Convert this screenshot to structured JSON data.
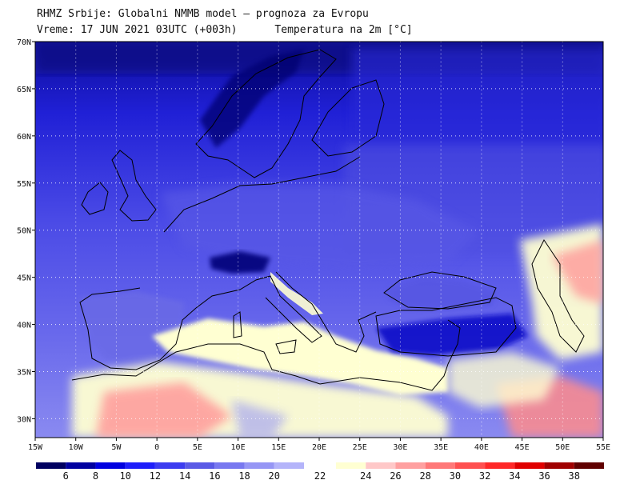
{
  "header": {
    "line1": "RHMZ Srbije: Globalni NMMB model — prognoza za Evropu",
    "line2": "Vreme: 17 JUN 2021 03UTC (+003h)      Temperatura na 2m [°C]"
  },
  "map": {
    "lon_range": [
      -15,
      55
    ],
    "lat_range": [
      28,
      70
    ],
    "lat_ticks": [
      "30N",
      "35N",
      "40N",
      "45N",
      "50N",
      "55N",
      "60N",
      "65N",
      "70N"
    ],
    "lon_ticks": [
      "15W",
      "10W",
      "5W",
      "0",
      "5E",
      "10E",
      "15E",
      "20E",
      "25E",
      "30E",
      "35E",
      "40E",
      "45E",
      "50E",
      "55E"
    ],
    "gridlines": true
  },
  "colorbar": {
    "labels": [
      "6",
      "8",
      "10",
      "12",
      "14",
      "16",
      "18",
      "20",
      "22",
      "24",
      "26",
      "28",
      "30",
      "32",
      "34",
      "36",
      "38"
    ],
    "colors": [
      "#000060",
      "#0000a0",
      "#0000e0",
      "#1e1efa",
      "#3c3cf0",
      "#5a5ae6",
      "#7878f0",
      "#9696f5",
      "#b4b4fa",
      "#ffffd2",
      "#ffc8c8",
      "#ffa0a0",
      "#ff7878",
      "#ff5050",
      "#ff2828",
      "#e00000",
      "#a00000",
      "#600000"
    ],
    "unit": "°C"
  },
  "colors": {
    "ocean_north": "#3434d8",
    "ocean_south": "#7c7ce6",
    "warm_land": "#ffffd2"
  }
}
